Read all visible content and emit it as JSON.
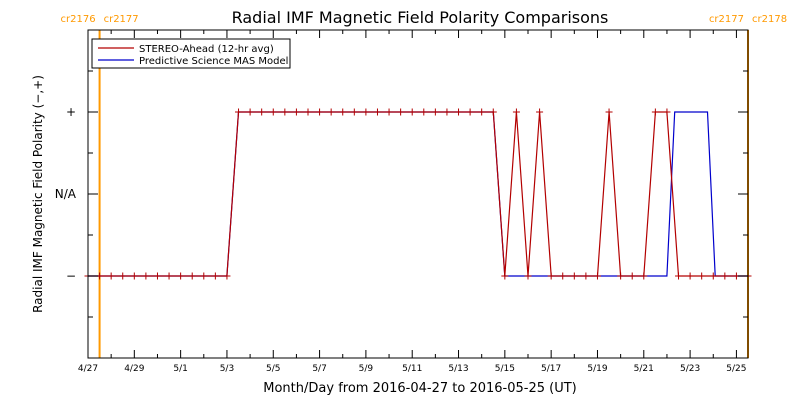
{
  "chart_data": {
    "type": "line",
    "title": "Radial IMF Magnetic Field Polarity Comparisons",
    "xlabel": "Month/Day from 2016-04-27 to 2016-05-25 (UT)",
    "ylabel": "Radial IMF Magnetic Field Polarity (−,+)",
    "x_unit": "days",
    "xlim": [
      "2016-04-27",
      "2016-05-25T12:00"
    ],
    "x_tick_labels": [
      "4/27",
      "4/29",
      "5/1",
      "5/3",
      "5/5",
      "5/7",
      "5/9",
      "5/11",
      "5/13",
      "5/15",
      "5/17",
      "5/19",
      "5/21",
      "5/23",
      "5/25"
    ],
    "x_tick_dates": [
      "2016-04-27",
      "2016-04-29",
      "2016-05-01",
      "2016-05-03",
      "2016-05-05",
      "2016-05-07",
      "2016-05-09",
      "2016-05-11",
      "2016-05-13",
      "2016-05-15",
      "2016-05-17",
      "2016-05-19",
      "2016-05-21",
      "2016-05-23",
      "2016-05-25"
    ],
    "y_categories": [
      "−",
      "N/A",
      "+"
    ],
    "y_values": [
      -1,
      0,
      1
    ],
    "ylim": [
      -2,
      2
    ],
    "carrington_markers": [
      {
        "date": "2016-04-27T12:00",
        "left_label": "cr2176",
        "right_label": "cr2177",
        "color": "#ff9900"
      },
      {
        "date": "2016-05-25T12:00",
        "left_label": "cr2177",
        "right_label": "cr2178",
        "color": "#ff9900"
      }
    ],
    "legend_position": "top-left",
    "series": [
      {
        "name": "STEREO-Ahead (12-hr avg)",
        "color": "#b30000",
        "marker": "+",
        "points": [
          [
            "2016-04-27",
            -1
          ],
          [
            "2016-04-27T12:00",
            -1
          ],
          [
            "2016-04-28",
            -1
          ],
          [
            "2016-04-28T12:00",
            -1
          ],
          [
            "2016-04-29",
            -1
          ],
          [
            "2016-04-29T12:00",
            -1
          ],
          [
            "2016-04-30",
            -1
          ],
          [
            "2016-04-30T12:00",
            -1
          ],
          [
            "2016-05-01",
            -1
          ],
          [
            "2016-05-01T12:00",
            -1
          ],
          [
            "2016-05-02",
            -1
          ],
          [
            "2016-05-02T12:00",
            -1
          ],
          [
            "2016-05-03",
            -1
          ],
          [
            "2016-05-03T12:00",
            1
          ],
          [
            "2016-05-04",
            1
          ],
          [
            "2016-05-04T12:00",
            1
          ],
          [
            "2016-05-05",
            1
          ],
          [
            "2016-05-05T12:00",
            1
          ],
          [
            "2016-05-06",
            1
          ],
          [
            "2016-05-06T12:00",
            1
          ],
          [
            "2016-05-07",
            1
          ],
          [
            "2016-05-07T12:00",
            1
          ],
          [
            "2016-05-08",
            1
          ],
          [
            "2016-05-08T12:00",
            1
          ],
          [
            "2016-05-09",
            1
          ],
          [
            "2016-05-09T12:00",
            1
          ],
          [
            "2016-05-10",
            1
          ],
          [
            "2016-05-10T12:00",
            1
          ],
          [
            "2016-05-11",
            1
          ],
          [
            "2016-05-11T12:00",
            1
          ],
          [
            "2016-05-12",
            1
          ],
          [
            "2016-05-12T12:00",
            1
          ],
          [
            "2016-05-13",
            1
          ],
          [
            "2016-05-13T12:00",
            1
          ],
          [
            "2016-05-14",
            1
          ],
          [
            "2016-05-14T12:00",
            1
          ],
          [
            "2016-05-15",
            -1
          ],
          [
            "2016-05-15T12:00",
            1
          ],
          [
            "2016-05-16",
            -1
          ],
          [
            "2016-05-16T12:00",
            1
          ],
          [
            "2016-05-17",
            -1
          ],
          [
            "2016-05-17T12:00",
            -1
          ],
          [
            "2016-05-18",
            -1
          ],
          [
            "2016-05-18T12:00",
            -1
          ],
          [
            "2016-05-19",
            -1
          ],
          [
            "2016-05-19T12:00",
            1
          ],
          [
            "2016-05-20",
            -1
          ],
          [
            "2016-05-20T12:00",
            -1
          ],
          [
            "2016-05-21",
            -1
          ],
          [
            "2016-05-21T12:00",
            1
          ],
          [
            "2016-05-22",
            1
          ],
          [
            "2016-05-22T12:00",
            -1
          ],
          [
            "2016-05-23",
            -1
          ],
          [
            "2016-05-23T12:00",
            -1
          ],
          [
            "2016-05-24",
            -1
          ],
          [
            "2016-05-24T12:00",
            -1
          ],
          [
            "2016-05-25",
            -1
          ],
          [
            "2016-05-25T12:00",
            -1
          ]
        ]
      },
      {
        "name": "Predictive Science MAS Model",
        "color": "#0000cc",
        "marker": "none",
        "points": [
          [
            "2016-04-27",
            -1
          ],
          [
            "2016-05-03",
            -1
          ],
          [
            "2016-05-03T12:00",
            1
          ],
          [
            "2016-05-14T12:00",
            1
          ],
          [
            "2016-05-15",
            -1
          ],
          [
            "2016-05-22",
            -1
          ],
          [
            "2016-05-22T08:00",
            1
          ],
          [
            "2016-05-23T18:00",
            1
          ],
          [
            "2016-05-24T02:00",
            -1
          ],
          [
            "2016-05-25T12:00",
            -1
          ]
        ]
      }
    ]
  }
}
